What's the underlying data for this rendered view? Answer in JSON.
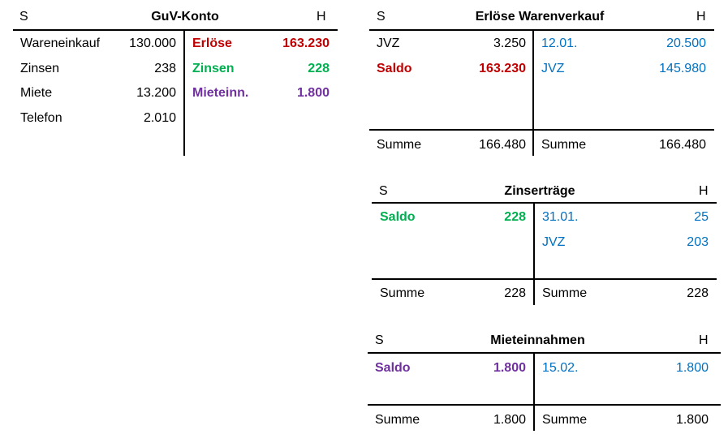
{
  "guv": {
    "s": "S",
    "title": "GuV-Konto",
    "h": "H",
    "left": [
      {
        "label": "Wareneinkauf",
        "value": "130.000"
      },
      {
        "label": "Zinsen",
        "value": "238"
      },
      {
        "label": "Miete",
        "value": "13.200"
      },
      {
        "label": "Telefon",
        "value": "2.010"
      }
    ],
    "right": [
      {
        "label": "Erlöse",
        "value": "163.230"
      },
      {
        "label": "Zinsen",
        "value": "228"
      },
      {
        "label": "Mieteinn.",
        "value": "1.800"
      }
    ]
  },
  "erloese": {
    "s": "S",
    "title": "Erlöse Warenverkauf",
    "h": "H",
    "left": [
      {
        "label": "JVZ",
        "value": "3.250"
      },
      {
        "label": "Saldo",
        "value": "163.230"
      }
    ],
    "right": [
      {
        "label": "12.01.",
        "value": "20.500"
      },
      {
        "label": "JVZ",
        "value": "145.980"
      }
    ],
    "sum_left": {
      "label": "Summe",
      "value": "166.480"
    },
    "sum_right": {
      "label": "Summe",
      "value": "166.480"
    }
  },
  "zins": {
    "s": "S",
    "title": "Zinserträge",
    "h": "H",
    "left": [
      {
        "label": "Saldo",
        "value": "228"
      }
    ],
    "right": [
      {
        "label": "31.01.",
        "value": "25"
      },
      {
        "label": "JVZ",
        "value": "203"
      }
    ],
    "sum_left": {
      "label": "Summe",
      "value": "228"
    },
    "sum_right": {
      "label": "Summe",
      "value": "228"
    }
  },
  "miete": {
    "s": "S",
    "title": "Mieteinnahmen",
    "h": "H",
    "left": [
      {
        "label": "Saldo",
        "value": "1.800"
      }
    ],
    "right": [
      {
        "label": "15.02.",
        "value": "1.800"
      }
    ],
    "sum_left": {
      "label": "Summe",
      "value": "1.800"
    },
    "sum_right": {
      "label": "Summe",
      "value": "1.800"
    }
  },
  "colors": {
    "red": "#c00000",
    "green": "#00b050",
    "purple": "#7030a0",
    "blue": "#0070c0"
  }
}
